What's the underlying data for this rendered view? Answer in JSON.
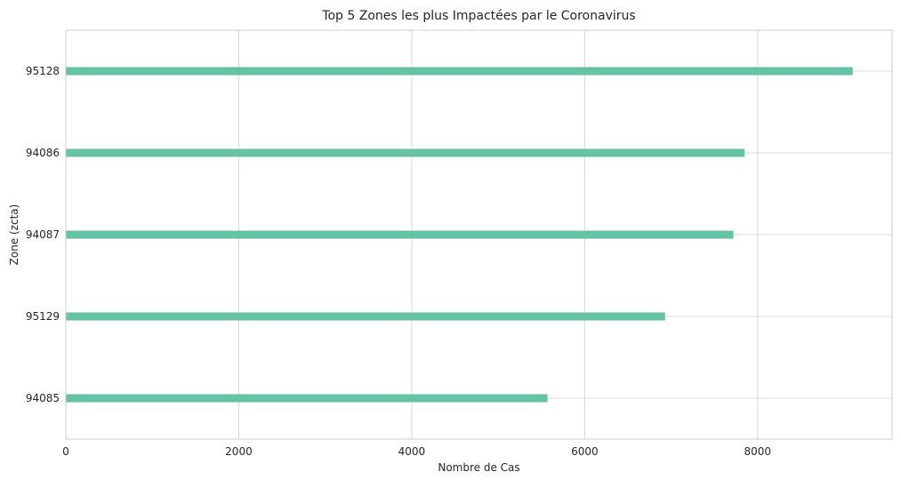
{
  "chart_data": {
    "type": "bar",
    "orientation": "horizontal",
    "title": "Top 5 Zones les plus Impactées par le Coronavirus",
    "xlabel": "Nombre de Cas",
    "ylabel": "Zone (zcta)",
    "categories": [
      "95128",
      "94086",
      "94087",
      "95129",
      "94085"
    ],
    "values": [
      9100,
      7850,
      7720,
      6930,
      5570
    ],
    "xlim": [
      0,
      9555
    ],
    "xticks": [
      "0",
      "2000",
      "4000",
      "6000",
      "8000"
    ],
    "grid": true,
    "legend": "none",
    "colors": {
      "bar": "#66c2a5",
      "grid": "#d9d9d9",
      "axis": "#cccccc",
      "text": "#262626"
    }
  }
}
